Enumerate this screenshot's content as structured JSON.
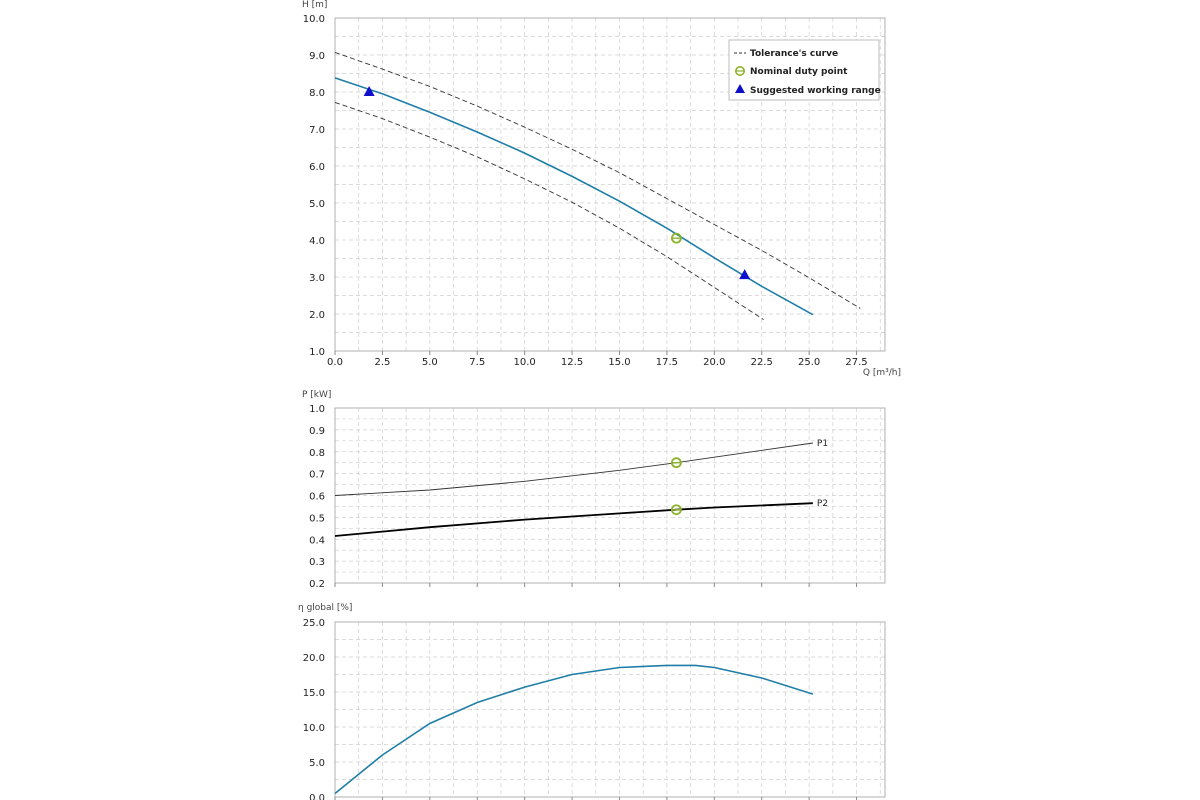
{
  "chart_data": [
    {
      "type": "line",
      "ylabel": "H [m]",
      "xlabel": "Q [m³/h]",
      "xlim": [
        0,
        29
      ],
      "ylim": [
        1,
        10
      ],
      "x_ticks": [
        "0.0",
        "2.5",
        "5.0",
        "7.5",
        "10.0",
        "12.5",
        "15.0",
        "17.5",
        "20.0",
        "22.5",
        "25.0",
        "27.5"
      ],
      "y_ticks": [
        "1.0",
        "2.0",
        "3.0",
        "4.0",
        "5.0",
        "6.0",
        "7.0",
        "8.0",
        "9.0",
        "10.0"
      ],
      "grid": true,
      "legend_position": "top-right",
      "legend": [
        "Tolerance's curve",
        "Nominal duty point",
        "Suggested working range"
      ],
      "series": [
        {
          "x": [
            0,
            2.5,
            5,
            7.5,
            10,
            12.5,
            15,
            17.5,
            20,
            22.5,
            25.2
          ],
          "y": [
            8.38,
            7.95,
            7.45,
            6.92,
            6.35,
            5.72,
            5.05,
            4.32,
            3.52,
            2.75,
            1.98
          ]
        },
        {
          "name": "Tolerance's curve",
          "style": "dashed",
          "x": [
            0,
            2.5,
            5,
            7.5,
            10,
            12.5,
            15,
            17.5,
            20,
            22.5,
            25,
            27.7
          ],
          "y": [
            9.07,
            8.62,
            8.15,
            7.62,
            7.05,
            6.45,
            5.82,
            5.12,
            4.42,
            3.72,
            2.98,
            2.15
          ]
        },
        {
          "style": "dashed",
          "x": [
            0,
            2.5,
            5,
            7.5,
            10,
            12.5,
            15,
            17.5,
            20,
            22.6
          ],
          "y": [
            7.72,
            7.28,
            6.78,
            6.25,
            5.65,
            5.02,
            4.32,
            3.55,
            2.72,
            1.85
          ]
        }
      ],
      "markers": [
        {
          "kind": "nominal",
          "x": 18.0,
          "y": 4.05
        },
        {
          "kind": "range",
          "x": 1.8,
          "y": 8.0
        },
        {
          "kind": "range",
          "x": 21.6,
          "y": 3.05
        }
      ]
    },
    {
      "type": "line",
      "ylabel": "P [kW]",
      "xlim": [
        0,
        29
      ],
      "ylim": [
        0.2,
        1.0
      ],
      "y_ticks": [
        "0.2",
        "0.3",
        "0.4",
        "0.5",
        "0.6",
        "0.7",
        "0.8",
        "0.9",
        "1.0"
      ],
      "grid": true,
      "series": [
        {
          "name": "P1",
          "x": [
            0,
            5,
            10,
            15,
            18,
            20,
            25.2
          ],
          "y": [
            0.6,
            0.625,
            0.665,
            0.715,
            0.75,
            0.775,
            0.84
          ]
        },
        {
          "name": "P2",
          "x": [
            0,
            5,
            10,
            15,
            18,
            20,
            25.2
          ],
          "y": [
            0.415,
            0.455,
            0.49,
            0.518,
            0.535,
            0.545,
            0.565
          ]
        }
      ],
      "markers": [
        {
          "kind": "nominal",
          "x": 18.0,
          "y": 0.75
        },
        {
          "kind": "nominal",
          "x": 18.0,
          "y": 0.535
        }
      ]
    },
    {
      "type": "line",
      "ylabel": "η global [%]",
      "xlim": [
        0,
        29
      ],
      "ylim": [
        0,
        25
      ],
      "y_ticks": [
        "0.0",
        "5.0",
        "10.0",
        "15.0",
        "20.0",
        "25.0"
      ],
      "grid": true,
      "series": [
        {
          "x": [
            0,
            2.5,
            5,
            7.5,
            10,
            12.5,
            15,
            17.5,
            19,
            20,
            22.5,
            25.2
          ],
          "y": [
            0.5,
            6.0,
            10.5,
            13.5,
            15.7,
            17.5,
            18.5,
            18.8,
            18.8,
            18.5,
            17.0,
            14.7
          ]
        }
      ]
    }
  ],
  "colors": {
    "main_curve": "#1f7ea8",
    "tolerance": "#333333",
    "nominal_marker": "#8cb32a",
    "range_marker": "#0d10c8",
    "power_p1": "#333333",
    "power_p2": "#000000",
    "grid": "#cfcfcf"
  }
}
